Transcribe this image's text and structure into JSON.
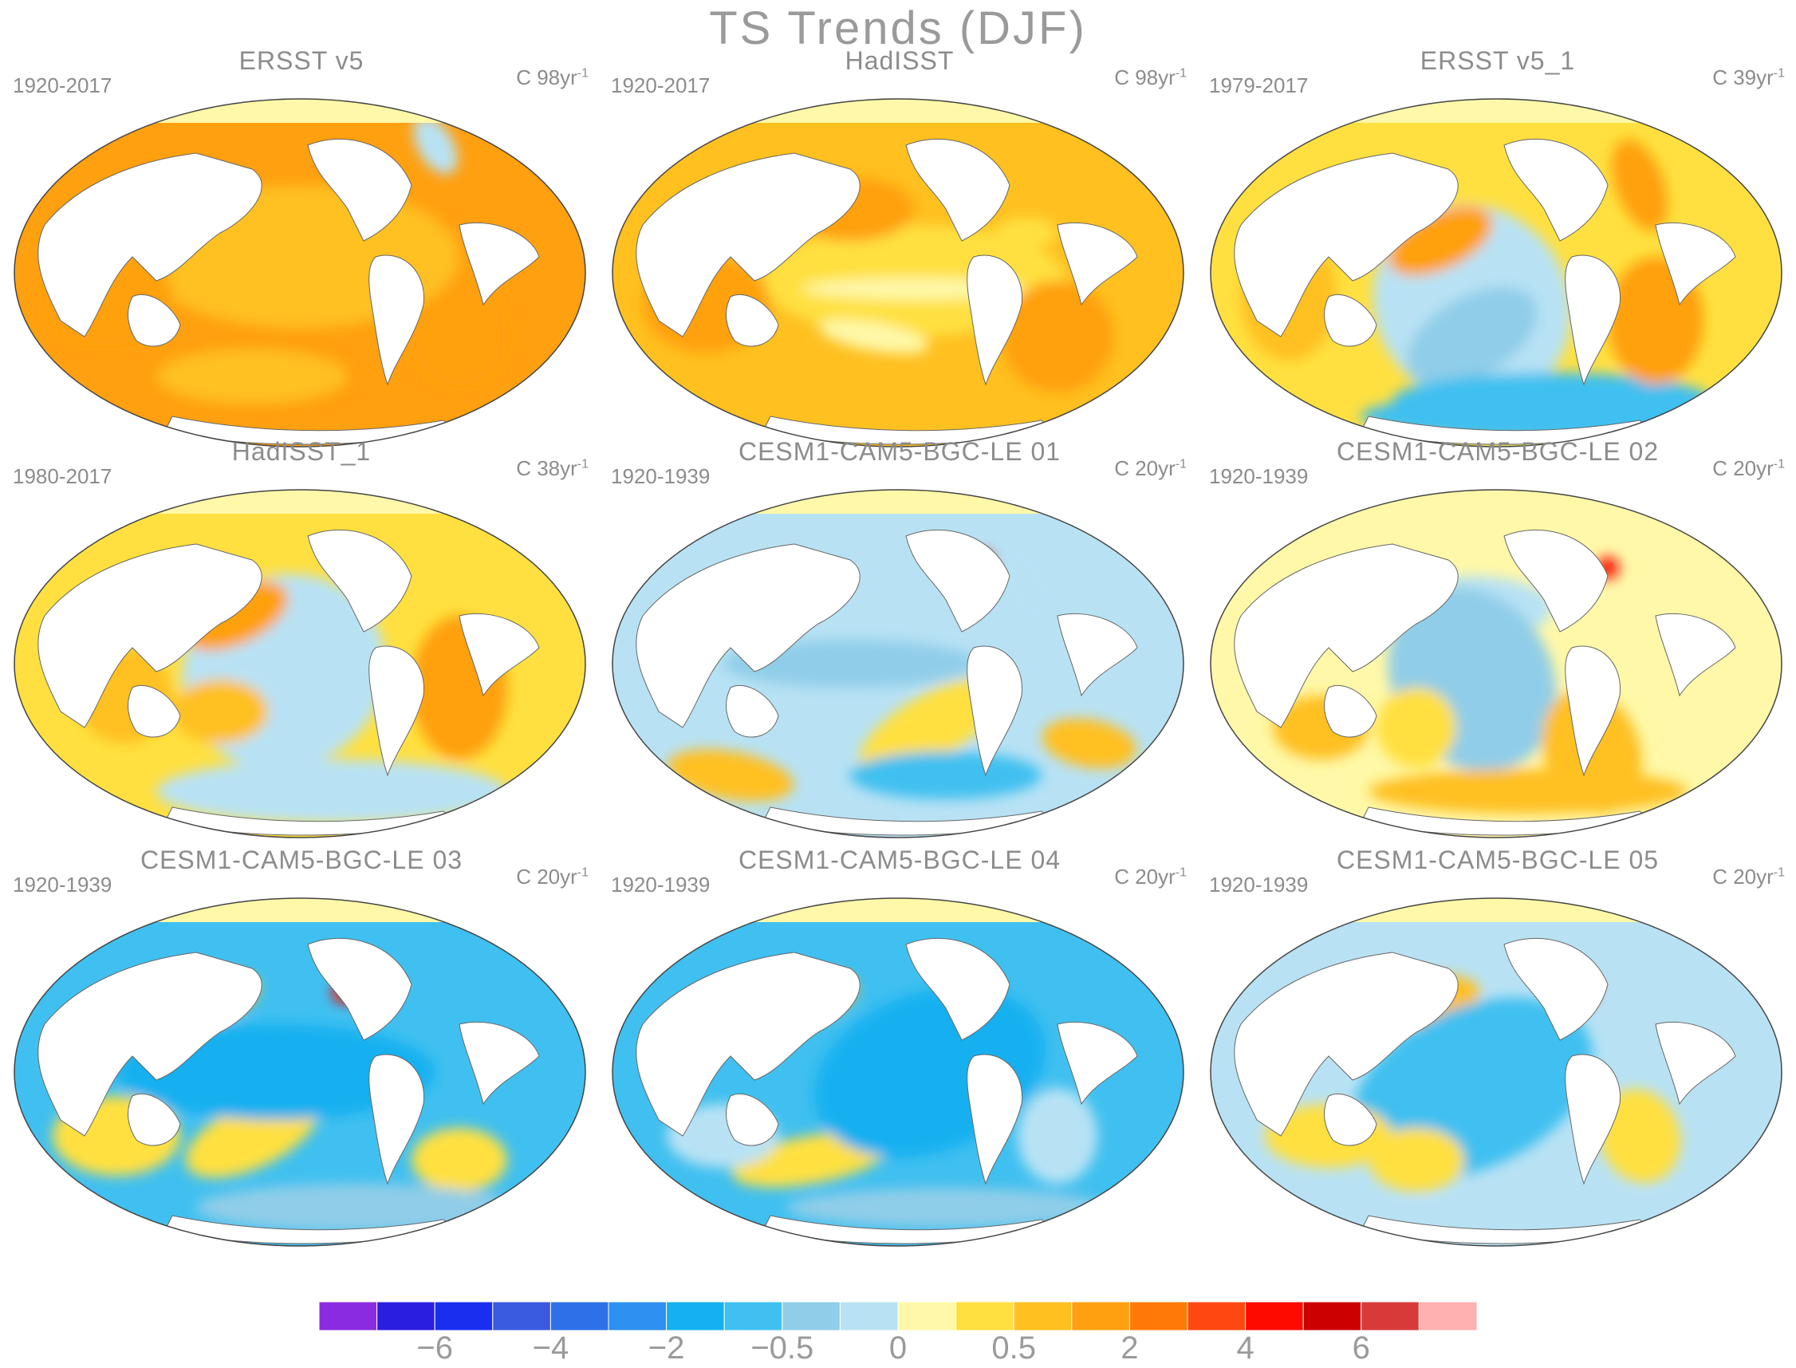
{
  "title": "TS Trends (DJF)",
  "panels": [
    {
      "title": "ERSST v5",
      "period": "1920-2017",
      "units": "C 98yr",
      "units_exp": "-1",
      "pattern": "warm_uniform"
    },
    {
      "title": "HadISST",
      "period": "1920-2017",
      "units": "C 98yr",
      "units_exp": "-1",
      "pattern": "warm_patchy"
    },
    {
      "title": "ERSST v5_1",
      "period": "1979-2017",
      "units": "C 39yr",
      "units_exp": "-1",
      "pattern": "la_nina_like"
    },
    {
      "title": "HadISST_1",
      "period": "1980-2017",
      "units": "C 38yr",
      "units_exp": "-1",
      "pattern": "la_nina_like_weak"
    },
    {
      "title": "CESM1-CAM5-BGC-LE 01",
      "period": "1920-1939",
      "units": "C 20yr",
      "units_exp": "-1",
      "pattern": "mixed_a"
    },
    {
      "title": "CESM1-CAM5-BGC-LE 02",
      "period": "1920-1939",
      "units": "C 20yr",
      "units_exp": "-1",
      "pattern": "mixed_b"
    },
    {
      "title": "CESM1-CAM5-BGC-LE 03",
      "period": "1920-1939",
      "units": "C 20yr",
      "units_exp": "-1",
      "pattern": "cool_kuroshio"
    },
    {
      "title": "CESM1-CAM5-BGC-LE 04",
      "period": "1920-1939",
      "units": "C 20yr",
      "units_exp": "-1",
      "pattern": "cool_kuroshio_b"
    },
    {
      "title": "CESM1-CAM5-BGC-LE 05",
      "period": "1920-1939",
      "units": "C 20yr",
      "units_exp": "-1",
      "pattern": "mixed_c"
    }
  ],
  "colorbar": {
    "colors": [
      "#8a2be2",
      "#2a1ee0",
      "#1a2ef0",
      "#3a5ae0",
      "#2e70e8",
      "#2e90f0",
      "#14b0f0",
      "#40c0f0",
      "#90cde8",
      "#b8e2f4",
      "#fff8a8",
      "#ffe040",
      "#ffc020",
      "#ffa010",
      "#ff7a08",
      "#ff4810",
      "#ff0a00",
      "#cc0000",
      "#d83a3a",
      "#ffb0b0"
    ],
    "labels": [
      "-6",
      "-4",
      "-2",
      "-0.5",
      "0",
      "0.5",
      "2",
      "4",
      "6"
    ]
  }
}
